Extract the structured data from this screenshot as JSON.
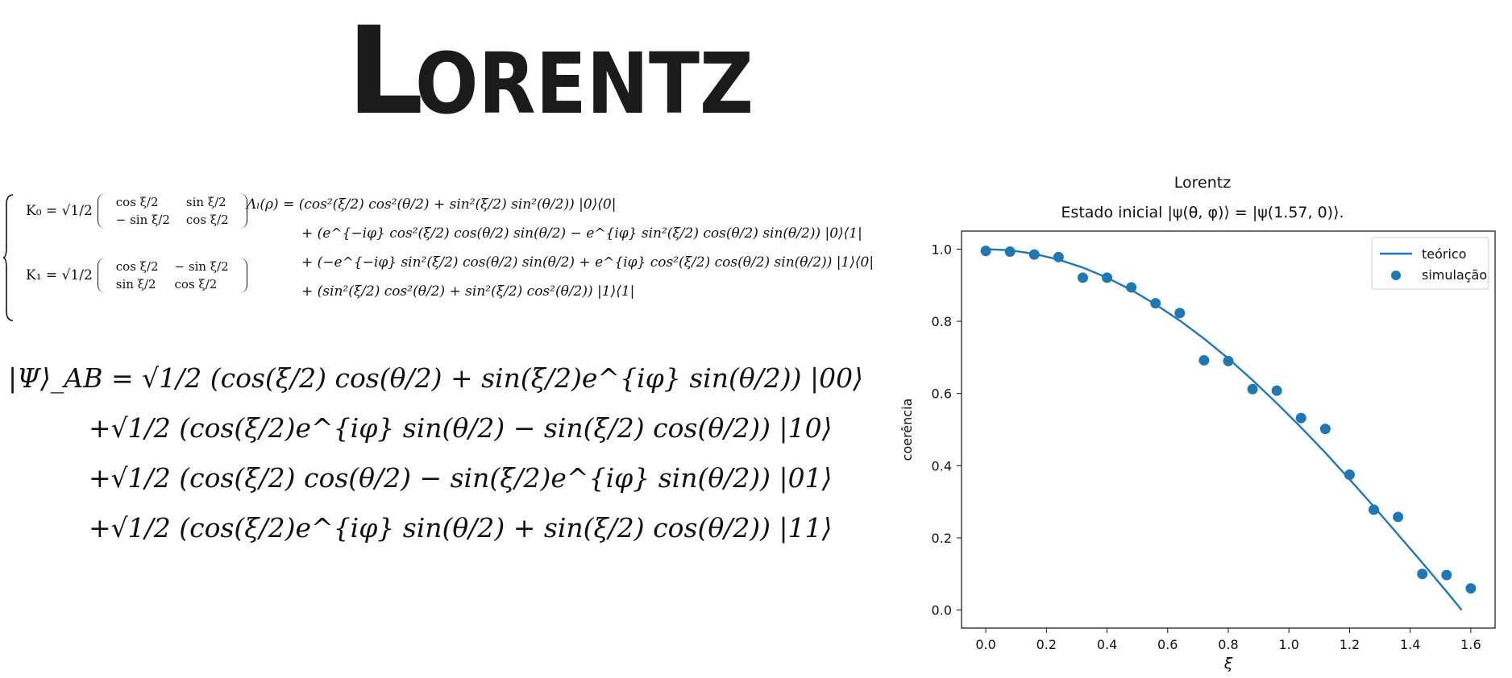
{
  "banner": {
    "title": "LORENTZ"
  },
  "kraus": {
    "k0_label": "K₀ = √1/2",
    "k0_matrix": [
      [
        "cos ξ/2",
        "sin ξ/2"
      ],
      [
        "− sin ξ/2",
        "cos ξ/2"
      ]
    ],
    "k1_label": "K₁ = √1/2",
    "k1_matrix": [
      [
        "cos ξ/2",
        "− sin ξ/2"
      ],
      [
        "sin ξ/2",
        "cos ξ/2"
      ]
    ],
    "lambda_lines": [
      "Λₗ(ρ) = (cos²(ξ/2) cos²(θ/2) + sin²(ξ/2) sin²(θ/2)) |0⟩⟨0|",
      "+ (e^{−iφ} cos²(ξ/2) cos(θ/2) sin(θ/2) − e^{iφ} sin²(ξ/2) cos(θ/2) sin(θ/2)) |0⟩⟨1|",
      "+ (−e^{−iφ} sin²(ξ/2) cos(θ/2) sin(θ/2) + e^{iφ} cos²(ξ/2) cos(θ/2) sin(θ/2)) |1⟩⟨0|",
      "+ (sin²(ξ/2) cos²(θ/2) + sin²(ξ/2) cos²(θ/2)) |1⟩⟨1|"
    ]
  },
  "psi": {
    "lines": [
      "|Ψ⟩_AB = √1/2 (cos(ξ/2) cos(θ/2) + sin(ξ/2)e^{iφ} sin(θ/2)) |00⟩",
      "+√1/2 (cos(ξ/2)e^{iφ} sin(θ/2) − sin(ξ/2) cos(θ/2)) |10⟩",
      "+√1/2 (cos(ξ/2) cos(θ/2) − sin(ξ/2)e^{iφ} sin(θ/2)) |01⟩",
      "+√1/2 (cos(ξ/2)e^{iφ} sin(θ/2) + sin(ξ/2) cos(θ/2)) |11⟩"
    ]
  },
  "chart_data": {
    "type": "scatter",
    "title": "Lorentz",
    "subtitle": "Estado inicial |ψ(θ, φ)⟩ = |ψ(1.57, 0)⟩.",
    "xlabel": "ξ",
    "ylabel": "coerência",
    "xlim": [
      -0.08,
      1.68
    ],
    "ylim": [
      -0.05,
      1.05
    ],
    "xticks": [
      "0.0",
      "0.2",
      "0.4",
      "0.6",
      "0.8",
      "1.0",
      "1.2",
      "1.4",
      "1.6"
    ],
    "yticks": [
      "0.0",
      "0.2",
      "0.4",
      "0.6",
      "0.8",
      "1.0"
    ],
    "legend_position": "top-right",
    "color": "#1f77b4",
    "series": [
      {
        "name": "teórico",
        "kind": "line",
        "x": [
          0.0,
          0.08,
          0.16,
          0.24,
          0.32,
          0.4,
          0.48,
          0.56,
          0.64,
          0.72,
          0.8,
          0.88,
          0.96,
          1.04,
          1.12,
          1.2,
          1.28,
          1.36,
          1.44,
          1.52,
          1.57
        ],
        "y": [
          1.0,
          0.997,
          0.987,
          0.971,
          0.949,
          0.921,
          0.887,
          0.847,
          0.802,
          0.752,
          0.697,
          0.637,
          0.573,
          0.506,
          0.436,
          0.362,
          0.287,
          0.209,
          0.131,
          0.051,
          0.0
        ]
      },
      {
        "name": "simulação",
        "kind": "scatter",
        "x": [
          0.0,
          0.08,
          0.16,
          0.24,
          0.32,
          0.4,
          0.48,
          0.56,
          0.64,
          0.72,
          0.8,
          0.88,
          0.96,
          1.04,
          1.12,
          1.2,
          1.28,
          1.36,
          1.44,
          1.52,
          1.6
        ],
        "y": [
          0.995,
          0.993,
          0.985,
          0.978,
          0.921,
          0.921,
          0.894,
          0.85,
          0.823,
          0.692,
          0.69,
          0.612,
          0.608,
          0.532,
          0.502,
          0.375,
          0.278,
          0.258,
          0.1,
          0.097,
          0.06
        ]
      }
    ]
  }
}
